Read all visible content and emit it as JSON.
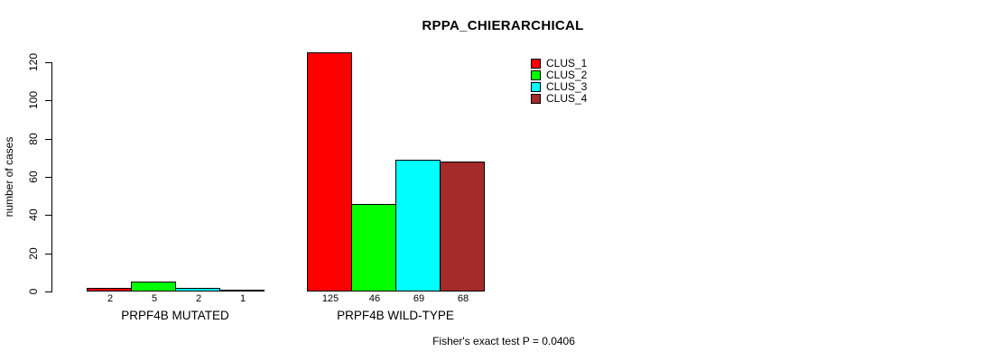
{
  "chart_data": {
    "type": "bar",
    "title": "RPPA_CHIERARCHICAL",
    "ylabel": "number of cases",
    "xlabel": "",
    "categories": [
      "PRPF4B MUTATED",
      "PRPF4B WILD-TYPE"
    ],
    "series": [
      {
        "name": "CLUS_1",
        "color": "#FF0000",
        "values": [
          2,
          125
        ]
      },
      {
        "name": "CLUS_2",
        "color": "#00FF00",
        "values": [
          5,
          46
        ]
      },
      {
        "name": "CLUS_3",
        "color": "#00FFFF",
        "values": [
          2,
          69
        ]
      },
      {
        "name": "CLUS_4",
        "color": "#A52A2A",
        "values": [
          1,
          68
        ]
      }
    ],
    "bar_value_labels": [
      [
        "2",
        "5",
        "2",
        "1"
      ],
      [
        "125",
        "46",
        "69",
        "68"
      ]
    ],
    "yticks": [
      0,
      20,
      40,
      60,
      80,
      100,
      120
    ],
    "ylim": [
      0,
      120
    ],
    "grid": false,
    "legend_position": "top-right",
    "annotation": "Fisher's exact test P = 0.0406"
  },
  "colors": {
    "axis": "#000000",
    "bar_border": "#000000",
    "background": "#FFFFFF"
  }
}
